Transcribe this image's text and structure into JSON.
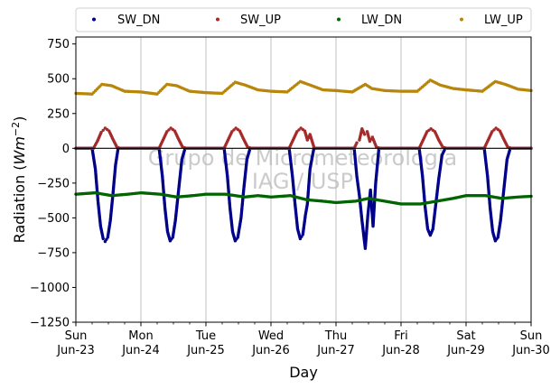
{
  "chart_data": {
    "type": "scatter",
    "xlabel": "Day",
    "ylabel_main": "Radiation (",
    "ylabel_unit": "Wm",
    "ylabel_exp": "−2",
    "ylabel_close": ")",
    "ylim": [
      -1250,
      800
    ],
    "yticks": [
      -1250,
      -1000,
      -750,
      -500,
      -250,
      0,
      250,
      500,
      750
    ],
    "ytick_labels": [
      "−1250",
      "−1000",
      "−750",
      "−500",
      "−250",
      "0",
      "250",
      "500",
      "750"
    ],
    "xlim": [
      0,
      7
    ],
    "xticks": [
      {
        "x": 0,
        "line1": "Sun",
        "line2": "Jun-23"
      },
      {
        "x": 1,
        "line1": "Mon",
        "line2": "Jun-24"
      },
      {
        "x": 2,
        "line1": "Tue",
        "line2": "Jun-25"
      },
      {
        "x": 3,
        "line1": "Wed",
        "line2": "Jun-26"
      },
      {
        "x": 4,
        "line1": "Thu",
        "line2": "Jun-27"
      },
      {
        "x": 5,
        "line1": "Fri",
        "line2": "Jun-28"
      },
      {
        "x": 6,
        "line1": "Sat",
        "line2": "Jun-29"
      },
      {
        "x": 7,
        "line1": "Sun",
        "line2": "Jun-30"
      }
    ],
    "grid": "vertical",
    "zero_line": true,
    "legend_placement": "top, above plot",
    "watermark_lines": [
      "Grupo de Micrometeorologia",
      "IAG / USP"
    ],
    "series": [
      {
        "name": "SW_DN",
        "color": "#00008b",
        "points": [
          [
            0.0,
            0
          ],
          [
            0.25,
            0
          ],
          [
            0.3,
            -150
          ],
          [
            0.34,
            -380
          ],
          [
            0.38,
            -560
          ],
          [
            0.42,
            -650
          ],
          [
            0.45,
            -670
          ],
          [
            0.49,
            -640
          ],
          [
            0.53,
            -520
          ],
          [
            0.57,
            -330
          ],
          [
            0.61,
            -120
          ],
          [
            0.65,
            0
          ],
          [
            0.75,
            0
          ],
          [
            1.0,
            0
          ],
          [
            1.28,
            0
          ],
          [
            1.33,
            -200
          ],
          [
            1.37,
            -430
          ],
          [
            1.41,
            -600
          ],
          [
            1.45,
            -665
          ],
          [
            1.49,
            -640
          ],
          [
            1.53,
            -520
          ],
          [
            1.58,
            -300
          ],
          [
            1.63,
            -80
          ],
          [
            1.68,
            0
          ],
          [
            2.0,
            0
          ],
          [
            2.28,
            0
          ],
          [
            2.33,
            -200
          ],
          [
            2.37,
            -430
          ],
          [
            2.41,
            -600
          ],
          [
            2.45,
            -665
          ],
          [
            2.49,
            -640
          ],
          [
            2.54,
            -500
          ],
          [
            2.58,
            -300
          ],
          [
            2.63,
            -80
          ],
          [
            2.68,
            0
          ],
          [
            3.0,
            0
          ],
          [
            3.28,
            0
          ],
          [
            3.33,
            -200
          ],
          [
            3.37,
            -400
          ],
          [
            3.41,
            -580
          ],
          [
            3.45,
            -650
          ],
          [
            3.49,
            -620
          ],
          [
            3.53,
            -480
          ],
          [
            3.56,
            -400
          ],
          [
            3.6,
            -150
          ],
          [
            3.66,
            0
          ],
          [
            4.0,
            0
          ],
          [
            4.28,
            0
          ],
          [
            4.32,
            -200
          ],
          [
            4.36,
            -340
          ],
          [
            4.4,
            -520
          ],
          [
            4.45,
            -720
          ],
          [
            4.49,
            -480
          ],
          [
            4.53,
            -300
          ],
          [
            4.57,
            -560
          ],
          [
            4.61,
            -250
          ],
          [
            4.66,
            0
          ],
          [
            5.0,
            0
          ],
          [
            5.28,
            0
          ],
          [
            5.33,
            -200
          ],
          [
            5.37,
            -420
          ],
          [
            5.41,
            -580
          ],
          [
            5.45,
            -625
          ],
          [
            5.49,
            -580
          ],
          [
            5.53,
            -420
          ],
          [
            5.58,
            -220
          ],
          [
            5.63,
            -50
          ],
          [
            5.68,
            0
          ],
          [
            6.0,
            0
          ],
          [
            6.28,
            0
          ],
          [
            6.33,
            -200
          ],
          [
            6.37,
            -430
          ],
          [
            6.41,
            -600
          ],
          [
            6.45,
            -665
          ],
          [
            6.49,
            -640
          ],
          [
            6.53,
            -520
          ],
          [
            6.58,
            -300
          ],
          [
            6.63,
            -80
          ],
          [
            6.68,
            0
          ],
          [
            7.0,
            0
          ]
        ]
      },
      {
        "name": "SW_UP",
        "color": "#a52a2a",
        "points": [
          [
            0.0,
            0
          ],
          [
            0.27,
            0
          ],
          [
            0.33,
            50
          ],
          [
            0.39,
            115
          ],
          [
            0.45,
            145
          ],
          [
            0.51,
            125
          ],
          [
            0.57,
            65
          ],
          [
            0.63,
            10
          ],
          [
            0.68,
            0
          ],
          [
            1.0,
            0
          ],
          [
            1.28,
            0
          ],
          [
            1.34,
            60
          ],
          [
            1.4,
            120
          ],
          [
            1.46,
            145
          ],
          [
            1.52,
            125
          ],
          [
            1.58,
            65
          ],
          [
            1.64,
            10
          ],
          [
            1.7,
            0
          ],
          [
            2.0,
            0
          ],
          [
            2.28,
            0
          ],
          [
            2.34,
            60
          ],
          [
            2.4,
            120
          ],
          [
            2.46,
            145
          ],
          [
            2.52,
            125
          ],
          [
            2.58,
            65
          ],
          [
            2.64,
            10
          ],
          [
            2.7,
            0
          ],
          [
            3.0,
            0
          ],
          [
            3.28,
            0
          ],
          [
            3.34,
            60
          ],
          [
            3.4,
            120
          ],
          [
            3.46,
            145
          ],
          [
            3.52,
            125
          ],
          [
            3.56,
            60
          ],
          [
            3.6,
            100
          ],
          [
            3.66,
            10
          ],
          [
            3.7,
            0
          ],
          [
            4.0,
            0
          ],
          [
            4.28,
            0
          ],
          [
            4.32,
            40
          ],
          [
            4.36,
            60
          ],
          [
            4.4,
            140
          ],
          [
            4.44,
            100
          ],
          [
            4.48,
            120
          ],
          [
            4.52,
            50
          ],
          [
            4.56,
            80
          ],
          [
            4.62,
            10
          ],
          [
            4.68,
            0
          ],
          [
            5.0,
            0
          ],
          [
            5.28,
            0
          ],
          [
            5.34,
            60
          ],
          [
            5.4,
            120
          ],
          [
            5.46,
            140
          ],
          [
            5.52,
            120
          ],
          [
            5.58,
            60
          ],
          [
            5.64,
            10
          ],
          [
            5.7,
            0
          ],
          [
            6.0,
            0
          ],
          [
            6.28,
            0
          ],
          [
            6.34,
            60
          ],
          [
            6.4,
            120
          ],
          [
            6.46,
            145
          ],
          [
            6.52,
            125
          ],
          [
            6.58,
            65
          ],
          [
            6.64,
            10
          ],
          [
            6.7,
            0
          ],
          [
            7.0,
            0
          ]
        ]
      },
      {
        "name": "LW_DN",
        "color": "#006400",
        "points": [
          [
            0.0,
            -330
          ],
          [
            0.3,
            -320
          ],
          [
            0.55,
            -340
          ],
          [
            0.8,
            -330
          ],
          [
            1.0,
            -320
          ],
          [
            1.3,
            -330
          ],
          [
            1.55,
            -350
          ],
          [
            1.8,
            -340
          ],
          [
            2.0,
            -330
          ],
          [
            2.3,
            -330
          ],
          [
            2.6,
            -350
          ],
          [
            2.8,
            -340
          ],
          [
            3.0,
            -350
          ],
          [
            3.3,
            -340
          ],
          [
            3.55,
            -370
          ],
          [
            3.8,
            -380
          ],
          [
            4.0,
            -390
          ],
          [
            4.3,
            -380
          ],
          [
            4.5,
            -360
          ],
          [
            4.75,
            -380
          ],
          [
            5.0,
            -400
          ],
          [
            5.3,
            -400
          ],
          [
            5.55,
            -380
          ],
          [
            5.8,
            -360
          ],
          [
            6.0,
            -340
          ],
          [
            6.3,
            -340
          ],
          [
            6.55,
            -360
          ],
          [
            6.8,
            -350
          ],
          [
            7.0,
            -345
          ]
        ]
      },
      {
        "name": "LW_UP",
        "color": "#b8860b",
        "points": [
          [
            0.0,
            395
          ],
          [
            0.25,
            390
          ],
          [
            0.4,
            460
          ],
          [
            0.55,
            450
          ],
          [
            0.75,
            410
          ],
          [
            1.0,
            405
          ],
          [
            1.25,
            390
          ],
          [
            1.4,
            460
          ],
          [
            1.55,
            450
          ],
          [
            1.75,
            410
          ],
          [
            2.0,
            400
          ],
          [
            2.25,
            395
          ],
          [
            2.45,
            475
          ],
          [
            2.6,
            455
          ],
          [
            2.8,
            420
          ],
          [
            3.0,
            410
          ],
          [
            3.25,
            405
          ],
          [
            3.45,
            480
          ],
          [
            3.6,
            455
          ],
          [
            3.8,
            420
          ],
          [
            4.0,
            415
          ],
          [
            4.25,
            405
          ],
          [
            4.45,
            460
          ],
          [
            4.55,
            430
          ],
          [
            4.75,
            415
          ],
          [
            5.0,
            410
          ],
          [
            5.25,
            410
          ],
          [
            5.45,
            490
          ],
          [
            5.6,
            455
          ],
          [
            5.8,
            430
          ],
          [
            6.0,
            420
          ],
          [
            6.25,
            410
          ],
          [
            6.45,
            480
          ],
          [
            6.6,
            460
          ],
          [
            6.8,
            425
          ],
          [
            7.0,
            415
          ]
        ]
      }
    ]
  }
}
